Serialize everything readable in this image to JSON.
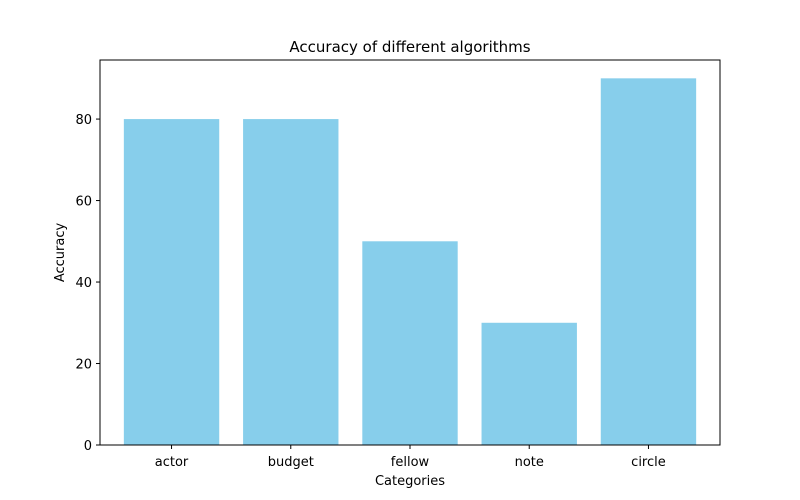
{
  "chart_data": {
    "type": "bar",
    "title": "Accuracy of different algorithms",
    "xlabel": "Categories",
    "ylabel": "Accuracy",
    "categories": [
      "actor",
      "budget",
      "fellow",
      "note",
      "circle"
    ],
    "values": [
      80,
      80,
      50,
      30,
      90
    ],
    "ylim": [
      0,
      94.5
    ],
    "yticks": [
      0,
      20,
      40,
      60,
      80
    ],
    "bar_color": "#87CEEB",
    "grid": false,
    "legend": "none"
  }
}
